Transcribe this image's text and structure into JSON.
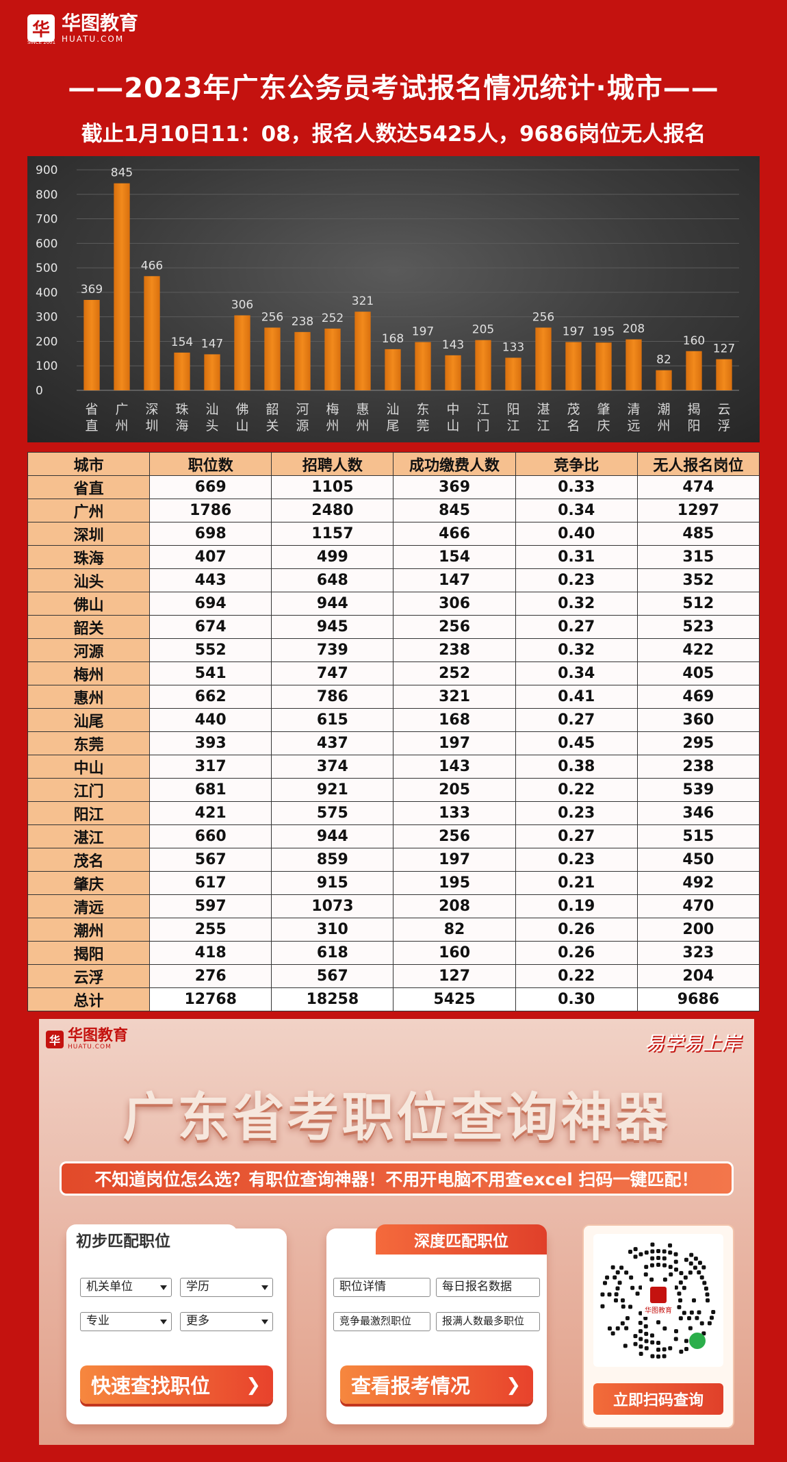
{
  "brand": {
    "logo_mark": "华",
    "name": "华图教育",
    "url": "HUATU.COM",
    "since": "SINCE 2001"
  },
  "header": {
    "title": "——2023年广东公务员考试报名情况统计·城市——",
    "subtitle": "截止1月10日11：08，报名人数达5425人，9686岗位无人报名"
  },
  "chart_data": {
    "type": "bar",
    "categories": [
      "省直",
      "广州",
      "深圳",
      "珠海",
      "汕头",
      "佛山",
      "韶关",
      "河源",
      "梅州",
      "惠州",
      "汕尾",
      "东莞",
      "中山",
      "江门",
      "阳江",
      "湛江",
      "茂名",
      "肇庆",
      "清远",
      "潮州",
      "揭阳",
      "云浮"
    ],
    "values": [
      369,
      845,
      466,
      154,
      147,
      306,
      256,
      238,
      252,
      321,
      168,
      197,
      143,
      205,
      133,
      256,
      197,
      195,
      208,
      82,
      160,
      127
    ],
    "y_ticks": [
      0,
      100,
      200,
      300,
      400,
      500,
      600,
      700,
      800,
      900
    ],
    "ylim": [
      0,
      900
    ],
    "bar_color": "#f28a1c",
    "grid": true,
    "title": "",
    "xlabel": "",
    "ylabel": ""
  },
  "table": {
    "headers": [
      "城市",
      "职位数",
      "招聘人数",
      "成功缴费人数",
      "竞争比",
      "无人报名岗位"
    ],
    "rows": [
      [
        "省直",
        "669",
        "1105",
        "369",
        "0.33",
        "474"
      ],
      [
        "广州",
        "1786",
        "2480",
        "845",
        "0.34",
        "1297"
      ],
      [
        "深圳",
        "698",
        "1157",
        "466",
        "0.40",
        "485"
      ],
      [
        "珠海",
        "407",
        "499",
        "154",
        "0.31",
        "315"
      ],
      [
        "汕头",
        "443",
        "648",
        "147",
        "0.23",
        "352"
      ],
      [
        "佛山",
        "694",
        "944",
        "306",
        "0.32",
        "512"
      ],
      [
        "韶关",
        "674",
        "945",
        "256",
        "0.27",
        "523"
      ],
      [
        "河源",
        "552",
        "739",
        "238",
        "0.32",
        "422"
      ],
      [
        "梅州",
        "541",
        "747",
        "252",
        "0.34",
        "405"
      ],
      [
        "惠州",
        "662",
        "786",
        "321",
        "0.41",
        "469"
      ],
      [
        "汕尾",
        "440",
        "615",
        "168",
        "0.27",
        "360"
      ],
      [
        "东莞",
        "393",
        "437",
        "197",
        "0.45",
        "295"
      ],
      [
        "中山",
        "317",
        "374",
        "143",
        "0.38",
        "238"
      ],
      [
        "江门",
        "681",
        "921",
        "205",
        "0.22",
        "539"
      ],
      [
        "阳江",
        "421",
        "575",
        "133",
        "0.23",
        "346"
      ],
      [
        "湛江",
        "660",
        "944",
        "256",
        "0.27",
        "515"
      ],
      [
        "茂名",
        "567",
        "859",
        "197",
        "0.23",
        "450"
      ],
      [
        "肇庆",
        "617",
        "915",
        "195",
        "0.21",
        "492"
      ],
      [
        "清远",
        "597",
        "1073",
        "208",
        "0.19",
        "470"
      ],
      [
        "潮州",
        "255",
        "310",
        "82",
        "0.26",
        "200"
      ],
      [
        "揭阳",
        "418",
        "618",
        "160",
        "0.26",
        "323"
      ],
      [
        "云浮",
        "276",
        "567",
        "127",
        "0.22",
        "204"
      ]
    ],
    "total": [
      "总计",
      "12768",
      "18258",
      "5425",
      "0.30",
      "9686"
    ]
  },
  "promo": {
    "logo_name": "华图教育",
    "logo_url": "HUATU.COM",
    "slogan": "易学易上岸",
    "headline": "广东省考职位查询神器",
    "banner": "不知道岗位怎么选？有职位查询神器！不用开电脑不用查excel 扫码一键匹配！",
    "card1": {
      "tab": "初步匹配职位",
      "selects": [
        "机关单位",
        "学历",
        "专业",
        "更多"
      ],
      "cta": "快速查找职位"
    },
    "card2": {
      "tab": "深度匹配职位",
      "options": [
        "职位详情",
        "每日报名数据",
        "竞争最激烈职位",
        "报满人数最多职位"
      ],
      "cta": "查看报考情况"
    },
    "qr": {
      "center_label": "华图教育",
      "button": "立即扫码查询"
    }
  }
}
